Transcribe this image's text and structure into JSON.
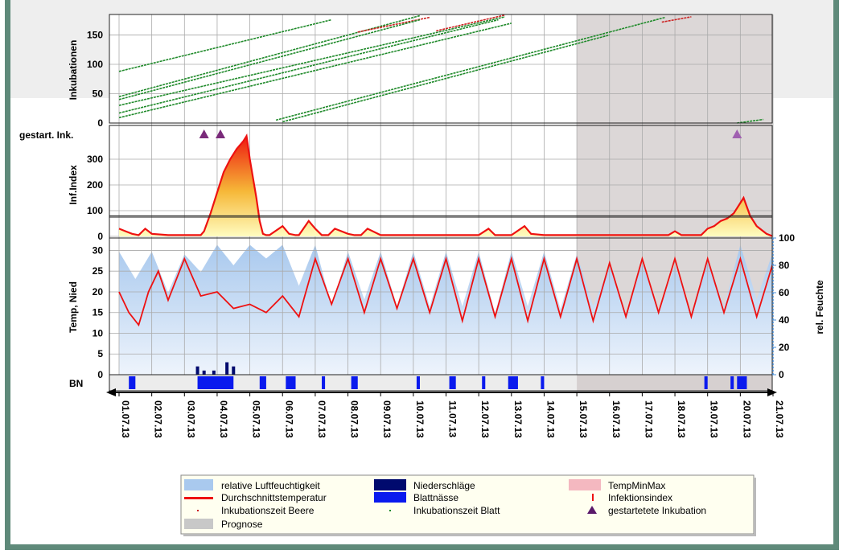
{
  "colors": {
    "frame": "#5f8a7a",
    "forecast": "#d6d0d0",
    "humidity": "#a9c9ee",
    "rain": "#000a6e",
    "leafwet": "#0a1aee",
    "templine": "#ee1111",
    "tempminmax": "#f4b8c0",
    "infindex": "#ee1111",
    "inc_berry": "#cc2222",
    "inc_leaf": "#1f8a2a",
    "triangle": "#7a2a7a",
    "legend_bg": "#fffff0"
  },
  "chart_data": {
    "type": "line",
    "forecast_start": "15.07.13",
    "dates": [
      "01.07.13",
      "02.07.13",
      "03.07.13",
      "04.07.13",
      "05.07.13",
      "06.07.13",
      "07.07.13",
      "08.07.13",
      "09.07.13",
      "10.07.13",
      "11.07.13",
      "12.07.13",
      "13.07.13",
      "14.07.13",
      "15.07.13",
      "16.07.13",
      "17.07.13",
      "18.07.13",
      "19.07.13",
      "20.07.13",
      "21.07.13"
    ],
    "panels": {
      "incubations": {
        "ylabel": "Inkubationen",
        "yticks": [
          0,
          50,
          100,
          150
        ],
        "ylim": [
          0,
          185
        ],
        "series": [
          {
            "kind": "leaf",
            "x": [
              0.0,
              6.5
            ],
            "y": [
              88,
              176
            ]
          },
          {
            "kind": "leaf",
            "x": [
              0.0,
              9.2
            ],
            "y": [
              45,
              183
            ]
          },
          {
            "kind": "berry",
            "x": [
              7.3,
              9.5
            ],
            "y": [
              155,
              180
            ]
          },
          {
            "kind": "leaf",
            "x": [
              0.0,
              9.2
            ],
            "y": [
              40,
              176
            ]
          },
          {
            "kind": "leaf",
            "x": [
              0.0,
              11.8
            ],
            "y": [
              30,
              181
            ]
          },
          {
            "kind": "berry",
            "x": [
              9.7,
              11.8
            ],
            "y": [
              157,
              184
            ]
          },
          {
            "kind": "leaf",
            "x": [
              0.0,
              11.6
            ],
            "y": [
              17,
              176
            ]
          },
          {
            "kind": "leaf",
            "x": [
              0.0,
              12.0
            ],
            "y": [
              9,
              170
            ]
          },
          {
            "kind": "leaf",
            "x": [
              4.8,
              15.0
            ],
            "y": [
              5,
              155
            ]
          },
          {
            "kind": "leaf",
            "x": [
              5.0,
              15.0
            ],
            "y": [
              2,
              150
            ]
          },
          {
            "kind": "leaf",
            "x": [
              15.0,
              16.7
            ],
            "y": [
              155,
              180
            ]
          },
          {
            "kind": "berry",
            "x": [
              16.6,
              17.5
            ],
            "y": [
              172,
              181
            ]
          },
          {
            "kind": "leaf",
            "x": [
              18.9,
              19.7
            ],
            "y": [
              0,
              6
            ]
          }
        ]
      },
      "started_incubations": {
        "label": "gestart. Ink.",
        "x": [
          2.6,
          3.1,
          18.9
        ]
      },
      "infection_index": {
        "ylabel": "Inf.Index",
        "yticks": [
          0,
          100,
          200,
          300
        ],
        "ylim": [
          0,
          400
        ],
        "threshold": 80,
        "x": [
          0,
          0.2,
          0.4,
          0.6,
          0.8,
          1.0,
          1.5,
          2.0,
          2.5,
          2.6,
          2.8,
          3.0,
          3.2,
          3.4,
          3.6,
          3.8,
          3.9,
          4.0,
          4.2,
          4.3,
          4.4,
          4.5,
          4.6,
          5.0,
          5.2,
          5.4,
          5.5,
          5.8,
          6.0,
          6.2,
          6.4,
          6.6,
          7.0,
          7.2,
          7.4,
          7.6,
          8.0,
          8.4,
          9.0,
          9.4,
          9.6,
          10.0,
          10.3,
          10.6,
          11.0,
          11.3,
          11.5,
          11.7,
          12.0,
          12.4,
          12.6,
          13.0,
          13.5,
          14.0,
          14.5,
          15.0,
          16.0,
          16.8,
          17.0,
          17.2,
          17.8,
          18.0,
          18.2,
          18.4,
          18.6,
          18.8,
          18.9,
          19.0,
          19.1,
          19.3,
          19.5,
          19.8,
          20.0
        ],
        "y": [
          30,
          20,
          10,
          5,
          30,
          10,
          5,
          5,
          5,
          20,
          90,
          170,
          250,
          300,
          340,
          370,
          390,
          300,
          150,
          60,
          10,
          5,
          5,
          40,
          10,
          5,
          5,
          60,
          30,
          5,
          5,
          30,
          10,
          5,
          5,
          30,
          5,
          5,
          5,
          5,
          5,
          5,
          5,
          5,
          5,
          30,
          5,
          5,
          5,
          40,
          10,
          5,
          5,
          5,
          5,
          5,
          5,
          5,
          20,
          5,
          5,
          30,
          40,
          60,
          70,
          90,
          110,
          130,
          150,
          80,
          40,
          10,
          0
        ]
      },
      "temp_humidity": {
        "ylabel": "Temp, Nied",
        "y2label": "rel. Feuchte",
        "yticks": [
          0,
          5,
          10,
          15,
          20,
          25,
          30
        ],
        "ylim": [
          0,
          33
        ],
        "y2ticks": [
          0,
          20,
          40,
          60,
          80,
          100
        ],
        "y2lim": [
          0,
          100
        ],
        "temp_x": [
          0,
          0.3,
          0.6,
          0.9,
          1.2,
          1.5,
          2.0,
          2.5,
          3.0,
          3.5,
          4.0,
          4.5,
          5.0,
          5.5,
          6.0,
          6.5,
          7.0,
          7.5,
          8.0,
          8.5,
          9.0,
          9.5,
          10.0,
          10.5,
          11.0,
          11.5,
          12.0,
          12.5,
          13.0,
          13.5,
          14.0,
          14.5,
          15.0,
          15.5,
          16.0,
          16.5,
          17.0,
          17.5,
          18.0,
          18.5,
          19.0,
          19.5,
          20.0
        ],
        "temp_y": [
          20,
          15,
          12,
          20,
          25,
          18,
          28,
          19,
          20,
          16,
          17,
          15,
          19,
          14,
          28,
          17,
          28,
          15,
          28,
          16,
          28,
          15,
          28,
          13,
          28,
          14,
          28,
          13,
          28,
          14,
          28,
          13,
          27,
          14,
          28,
          15,
          28,
          14,
          28,
          15,
          28,
          14,
          27
        ],
        "hum_x": [
          0,
          0.5,
          1.0,
          1.5,
          2.0,
          2.5,
          3.0,
          3.5,
          4.0,
          4.5,
          5.0,
          5.5,
          6.0,
          6.5,
          7.0,
          7.5,
          8.0,
          8.5,
          9.0,
          9.5,
          10.0,
          10.5,
          11.0,
          11.5,
          12.0,
          12.5,
          13.0,
          13.5,
          14.0,
          14.5,
          15.0,
          15.5,
          16.0,
          16.5,
          17.0,
          17.5,
          18.0,
          18.5,
          19.0,
          19.5,
          20.0
        ],
        "hum_y": [
          90,
          70,
          90,
          60,
          88,
          75,
          95,
          80,
          95,
          85,
          95,
          65,
          95,
          50,
          90,
          55,
          90,
          50,
          90,
          50,
          90,
          50,
          90,
          45,
          90,
          50,
          90,
          48,
          88,
          50,
          80,
          45,
          82,
          45,
          80,
          45,
          85,
          50,
          95,
          55,
          90
        ],
        "rain_x": [
          2.4,
          2.6,
          2.9,
          3.3,
          3.5
        ],
        "rain_y": [
          2,
          1,
          1,
          3,
          2
        ]
      },
      "leaf_wetness": {
        "label": "BN",
        "segments": [
          [
            0.3,
            0.5
          ],
          [
            2.4,
            3.5
          ],
          [
            4.3,
            4.5
          ],
          [
            5.1,
            5.4
          ],
          [
            6.2,
            6.3
          ],
          [
            7.1,
            7.3
          ],
          [
            9.1,
            9.2
          ],
          [
            10.1,
            10.3
          ],
          [
            11.1,
            11.2
          ],
          [
            11.9,
            12.2
          ],
          [
            12.9,
            13.0
          ],
          [
            17.9,
            18.0
          ],
          [
            18.7,
            18.8
          ],
          [
            18.9,
            19.2
          ]
        ]
      }
    },
    "legend": [
      {
        "key": "humidity",
        "label": "relative Luftfeuchtigkeit"
      },
      {
        "key": "rain",
        "label": "Niederschläge"
      },
      {
        "key": "tempminmax",
        "label": "TempMinMax"
      },
      {
        "key": "tempavg",
        "label": "Durchschnittstemperatur"
      },
      {
        "key": "leafwet",
        "label": "Blattnässe"
      },
      {
        "key": "infidx",
        "label": "Infektionsindex"
      },
      {
        "key": "incberry",
        "label": "Inkubationszeit Beere"
      },
      {
        "key": "incleaf",
        "label": "Inkubationszeit Blatt"
      },
      {
        "key": "started",
        "label": "gestartetete Inkubation"
      },
      {
        "key": "forecast",
        "label": "Prognose"
      }
    ]
  }
}
